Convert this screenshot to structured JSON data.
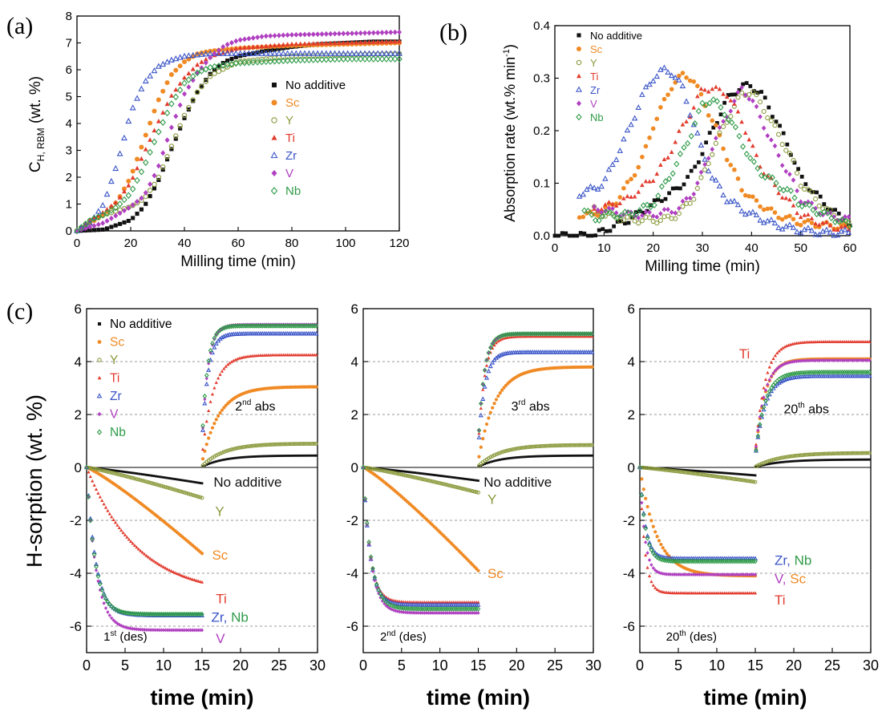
{
  "colors": {
    "No additive": "#111111",
    "Sc": "#f08a24",
    "Y": "#8a9a3c",
    "Ti": "#e23b2e",
    "Zr": "#3b55c8",
    "V": "#b040c0",
    "Nb": "#2f9b48"
  },
  "chart_data": [
    {
      "panel": "(a)",
      "type": "scatter",
      "xlabel": "Milling time (min)",
      "ylabel_main": "C",
      "ylabel_sub": "H, RBM",
      "ylabel_unit": " (wt. %)",
      "xlim": [
        0,
        120
      ],
      "ylim": [
        0,
        8
      ],
      "xticks": [
        0,
        20,
        40,
        60,
        80,
        100,
        120
      ],
      "yticks": [
        0,
        1,
        2,
        3,
        4,
        5,
        6,
        7,
        8
      ],
      "legend": [
        "No additive",
        "Sc",
        "Y",
        "Ti",
        "Zr",
        "V",
        "Nb"
      ],
      "series": [
        {
          "name": "No additive",
          "x": [
            0,
            10,
            20,
            25,
            30,
            35,
            40,
            45,
            50,
            55,
            60,
            70,
            80,
            90,
            100,
            110,
            120
          ],
          "y": [
            0,
            0.05,
            0.4,
            0.9,
            1.8,
            3,
            4.2,
            5.2,
            5.9,
            6.3,
            6.5,
            6.7,
            6.85,
            6.95,
            7.0,
            7.05,
            7.05
          ]
        },
        {
          "name": "Sc",
          "x": [
            0,
            5,
            10,
            15,
            20,
            25,
            30,
            35,
            40,
            45,
            50,
            60,
            70,
            80,
            100,
            120
          ],
          "y": [
            0,
            0.3,
            0.6,
            1.1,
            2.0,
            3.4,
            4.8,
            5.8,
            6.3,
            6.6,
            6.7,
            6.8,
            6.85,
            6.9,
            6.95,
            7.0
          ]
        },
        {
          "name": "Y",
          "x": [
            0,
            5,
            10,
            20,
            25,
            30,
            35,
            40,
            45,
            50,
            60,
            80,
            100,
            120
          ],
          "y": [
            0,
            0.4,
            0.6,
            0.9,
            1.2,
            1.9,
            3.1,
            4.3,
            5.2,
            5.8,
            6.3,
            6.5,
            6.55,
            6.6
          ]
        },
        {
          "name": "Ti",
          "x": [
            0,
            5,
            10,
            15,
            20,
            25,
            30,
            35,
            40,
            45,
            50,
            60,
            80,
            100,
            120
          ],
          "y": [
            0,
            0.4,
            0.7,
            1.1,
            1.8,
            2.9,
            4.0,
            5.0,
            5.7,
            6.2,
            6.5,
            6.8,
            6.95,
            7.0,
            7.05
          ]
        },
        {
          "name": "Zr",
          "x": [
            0,
            5,
            10,
            15,
            18,
            20,
            25,
            30,
            35,
            40,
            50,
            60,
            80,
            100,
            120
          ],
          "y": [
            0,
            0.3,
            1.0,
            2.5,
            3.6,
            4.4,
            5.5,
            6.1,
            6.35,
            6.5,
            6.6,
            6.6,
            6.6,
            6.6,
            6.6
          ]
        },
        {
          "name": "V",
          "x": [
            0,
            10,
            20,
            25,
            30,
            35,
            40,
            45,
            50,
            55,
            60,
            70,
            80,
            100,
            120
          ],
          "y": [
            0,
            0.3,
            0.9,
            1.3,
            2.3,
            3.8,
            5.1,
            5.9,
            6.5,
            6.9,
            7.1,
            7.25,
            7.3,
            7.35,
            7.4
          ]
        },
        {
          "name": "Nb",
          "x": [
            0,
            5,
            10,
            15,
            20,
            25,
            30,
            35,
            40,
            45,
            50,
            60,
            80,
            100,
            120
          ],
          "y": [
            0,
            0.4,
            0.6,
            0.9,
            1.4,
            2.4,
            3.6,
            4.7,
            5.5,
            5.9,
            6.1,
            6.25,
            6.35,
            6.4,
            6.4
          ]
        }
      ]
    },
    {
      "panel": "(b)",
      "type": "scatter",
      "xlabel": "Milling time (min)",
      "ylabel": "Absorption rate (wt.% min",
      "ylabel_sup": "-1",
      "ylabel_end": ")",
      "xlim": [
        0,
        60
      ],
      "ylim": [
        0,
        0.4
      ],
      "xticks": [
        0,
        10,
        20,
        30,
        40,
        50,
        60
      ],
      "yticks": [
        0.0,
        0.1,
        0.2,
        0.3,
        0.4
      ],
      "ytick_labels": [
        "0.0",
        "0.1",
        "0.2",
        "0.3",
        "0.4"
      ],
      "legend": [
        "No additive",
        "Sc",
        "Y",
        "Ti",
        "Zr",
        "V",
        "Nb"
      ],
      "series": [
        {
          "name": "No additive",
          "x": [
            0,
            8,
            10,
            15,
            20,
            25,
            28,
            30,
            33,
            35,
            38,
            40,
            42,
            45,
            48,
            50,
            55,
            60
          ],
          "y": [
            0,
            0,
            0.01,
            0.03,
            0.06,
            0.09,
            0.12,
            0.16,
            0.22,
            0.26,
            0.285,
            0.285,
            0.27,
            0.22,
            0.16,
            0.11,
            0.06,
            0.02
          ]
        },
        {
          "name": "Sc",
          "x": [
            5,
            8,
            10,
            12,
            15,
            18,
            20,
            22,
            24,
            26,
            28,
            30,
            33,
            35,
            38,
            40,
            45,
            50,
            55,
            60
          ],
          "y": [
            0.04,
            0.04,
            0.05,
            0.06,
            0.1,
            0.15,
            0.21,
            0.25,
            0.29,
            0.305,
            0.3,
            0.26,
            0.2,
            0.15,
            0.09,
            0.07,
            0.04,
            0.025,
            0.02,
            0.015
          ]
        },
        {
          "name": "Y",
          "x": [
            8,
            10,
            15,
            20,
            22,
            25,
            28,
            30,
            32,
            35,
            38,
            40,
            42,
            45,
            48,
            50,
            55,
            60
          ],
          "y": [
            0.05,
            0.04,
            0.03,
            0.03,
            0.03,
            0.04,
            0.07,
            0.11,
            0.16,
            0.22,
            0.27,
            0.275,
            0.25,
            0.2,
            0.15,
            0.1,
            0.05,
            0.02
          ]
        },
        {
          "name": "Ti",
          "x": [
            8,
            10,
            15,
            20,
            23,
            25,
            28,
            30,
            32,
            35,
            38,
            40,
            42,
            45,
            48,
            50,
            55,
            60
          ],
          "y": [
            0.05,
            0.055,
            0.07,
            0.11,
            0.15,
            0.19,
            0.24,
            0.28,
            0.28,
            0.27,
            0.22,
            0.17,
            0.13,
            0.09,
            0.06,
            0.04,
            0.02,
            0.01
          ]
        },
        {
          "name": "Zr",
          "x": [
            5,
            8,
            10,
            12,
            15,
            18,
            20,
            22,
            24,
            26,
            28,
            30,
            32,
            35,
            38,
            40,
            45,
            50,
            55,
            60
          ],
          "y": [
            0.08,
            0.09,
            0.1,
            0.14,
            0.2,
            0.27,
            0.3,
            0.315,
            0.31,
            0.28,
            0.22,
            0.16,
            0.11,
            0.07,
            0.05,
            0.04,
            0.02,
            0.01,
            0.005,
            0.005
          ]
        },
        {
          "name": "V",
          "x": [
            8,
            10,
            15,
            20,
            25,
            28,
            30,
            32,
            35,
            38,
            40,
            42,
            45,
            48,
            50,
            55,
            60
          ],
          "y": [
            0.05,
            0.05,
            0.04,
            0.04,
            0.05,
            0.08,
            0.12,
            0.17,
            0.23,
            0.28,
            0.26,
            0.22,
            0.16,
            0.11,
            0.07,
            0.04,
            0.03
          ]
        },
        {
          "name": "Nb",
          "x": [
            6,
            8,
            10,
            15,
            20,
            25,
            28,
            30,
            32,
            35,
            38,
            40,
            42,
            45,
            48,
            50,
            55,
            60
          ],
          "y": [
            0.05,
            0.03,
            0.04,
            0.04,
            0.06,
            0.14,
            0.2,
            0.25,
            0.26,
            0.23,
            0.18,
            0.14,
            0.12,
            0.1,
            0.08,
            0.06,
            0.04,
            0.02
          ]
        }
      ]
    },
    {
      "panel": "(c)",
      "type": "scatter",
      "ylabel": "H-sorption  (wt. %)",
      "xlabel": "time (min)",
      "xlim": [
        0,
        30
      ],
      "ylim": [
        -7,
        6
      ],
      "xticks": [
        0,
        5,
        10,
        15,
        20,
        25,
        30
      ],
      "yticks": [
        -6,
        -4,
        -2,
        0,
        2,
        4,
        6
      ],
      "legend": [
        "No additive",
        "Sc",
        "Y",
        "Ti",
        "Zr",
        "V",
        "Nb"
      ],
      "subplots": [
        {
          "id": "cycle1",
          "des_label": "1",
          "des_sup": "st",
          "des_suffix": " (des)",
          "abs_label": "2",
          "abs_sup": "nd",
          "abs_suffix": " abs",
          "annotations": [
            {
              "text": "No additive",
              "color": "#111111",
              "x": 16.5,
              "y": -0.55
            },
            {
              "text": "Y",
              "color": "#8a9a3c",
              "x": 16.7,
              "y": -1.65
            },
            {
              "text": "Sc",
              "color": "#f08a24",
              "x": 16.3,
              "y": -3.3
            },
            {
              "text": "Ti",
              "color": "#e23b2e",
              "x": 16.8,
              "y": -4.95
            },
            {
              "parts": [
                {
                  "text": "Zr",
                  "color": "#3b55c8"
                },
                {
                  "text": ", ",
                  "color": "#3b55c8"
                },
                {
                  "text": "Nb",
                  "color": "#2f9b48"
                }
              ],
              "x": 16.2,
              "y": -5.65
            },
            {
              "text": "V",
              "color": "#b040c0",
              "x": 16.8,
              "y": -6.45
            }
          ],
          "series": [
            {
              "name": "No additive",
              "des_end": -0.6,
              "des_k": 0,
              "abs_end": 0.45,
              "abs_k": 0.35
            },
            {
              "name": "Sc",
              "des_end": -3.25,
              "des_k": 0,
              "abs_end": 3.05,
              "abs_k": 0.45
            },
            {
              "name": "Y",
              "des_end": -1.15,
              "des_k": 0,
              "abs_end": 0.9,
              "abs_k": 0.35
            },
            {
              "name": "Ti",
              "des_end": -4.85,
              "des_k": 0.15,
              "abs_end": 4.25,
              "abs_k": 0.7
            },
            {
              "name": "Zr",
              "des_end": -5.6,
              "des_k": 0.85,
              "abs_end": 5.05,
              "abs_k": 1.3
            },
            {
              "name": "V",
              "des_end": -6.15,
              "des_k": 0.8,
              "abs_end": 5.4,
              "abs_k": 1.3
            },
            {
              "name": "Nb",
              "des_end": -5.55,
              "des_k": 0.9,
              "abs_end": 5.35,
              "abs_k": 1.4
            }
          ]
        },
        {
          "id": "cycle2",
          "des_label": "2",
          "des_sup": "nd",
          "des_suffix": " (des)",
          "abs_label": "3",
          "abs_sup": "rd",
          "abs_suffix": " abs",
          "annotations": [
            {
              "text": "No additive",
              "color": "#111111",
              "x": 15.7,
              "y": -0.55
            },
            {
              "text": "Y",
              "color": "#8a9a3c",
              "x": 16.2,
              "y": -1.2
            },
            {
              "text": "Sc",
              "color": "#f08a24",
              "x": 16.2,
              "y": -4.0
            }
          ],
          "series": [
            {
              "name": "No additive",
              "des_end": -0.5,
              "des_k": 0,
              "abs_end": 0.45,
              "abs_k": 0.35
            },
            {
              "name": "Sc",
              "des_end": -3.9,
              "des_k": 0,
              "abs_end": 3.8,
              "abs_k": 0.45
            },
            {
              "name": "Y",
              "des_end": -0.95,
              "des_k": 0,
              "abs_end": 0.85,
              "abs_k": 0.35
            },
            {
              "name": "Ti",
              "des_end": -5.1,
              "des_k": 1.1,
              "abs_end": 4.95,
              "abs_k": 1.2
            },
            {
              "name": "Zr",
              "des_end": -5.2,
              "des_k": 1.1,
              "abs_end": 4.35,
              "abs_k": 1.2
            },
            {
              "name": "V",
              "des_end": -5.5,
              "des_k": 1.0,
              "abs_end": 5.05,
              "abs_k": 1.3
            },
            {
              "name": "Nb",
              "des_end": -5.35,
              "des_k": 1.0,
              "abs_end": 5.05,
              "abs_k": 1.3
            }
          ]
        },
        {
          "id": "cycle20",
          "des_label": "20",
          "des_sup": "th",
          "des_suffix": " (des)",
          "abs_label": "20",
          "abs_sup": "th",
          "abs_suffix": " abs",
          "annotations": [
            {
              "text": "Ti",
              "color": "#e23b2e",
              "x": 14.3,
              "y": 4.3,
              "anchor": "end"
            },
            {
              "parts": [
                {
                  "text": "Zr",
                  "color": "#3b55c8"
                },
                {
                  "text": ", ",
                  "color": "#3b55c8"
                },
                {
                  "text": "Nb",
                  "color": "#2f9b48"
                }
              ],
              "x": 17.5,
              "y": -3.5
            },
            {
              "parts": [
                {
                  "text": "V",
                  "color": "#b040c0"
                },
                {
                  "text": ", ",
                  "color": "#b040c0"
                },
                {
                  "text": "Sc",
                  "color": "#f08a24"
                }
              ],
              "x": 17.5,
              "y": -4.2
            },
            {
              "text": "Ti",
              "color": "#e23b2e",
              "x": 17.5,
              "y": -5.0
            }
          ],
          "series": [
            {
              "name": "No additive",
              "des_end": -0.3,
              "des_k": 0,
              "abs_end": 0.3,
              "abs_k": 0.3
            },
            {
              "name": "Sc",
              "des_end": -4.1,
              "des_k": 0.45,
              "abs_end": 4.1,
              "abs_k": 0.8
            },
            {
              "name": "Y",
              "des_end": -0.55,
              "des_k": 0,
              "abs_end": 0.55,
              "abs_k": 0.3
            },
            {
              "name": "Ti",
              "des_end": -4.75,
              "des_k": 1.6,
              "abs_end": 4.75,
              "abs_k": 0.8
            },
            {
              "name": "Zr",
              "des_end": -3.45,
              "des_k": 1.4,
              "abs_end": 3.45,
              "abs_k": 0.8
            },
            {
              "name": "V",
              "des_end": -4.05,
              "des_k": 1.6,
              "abs_end": 4.05,
              "abs_k": 0.85
            },
            {
              "name": "Nb",
              "des_end": -3.55,
              "des_k": 1.4,
              "abs_end": 3.6,
              "abs_k": 0.8
            }
          ]
        }
      ]
    }
  ]
}
